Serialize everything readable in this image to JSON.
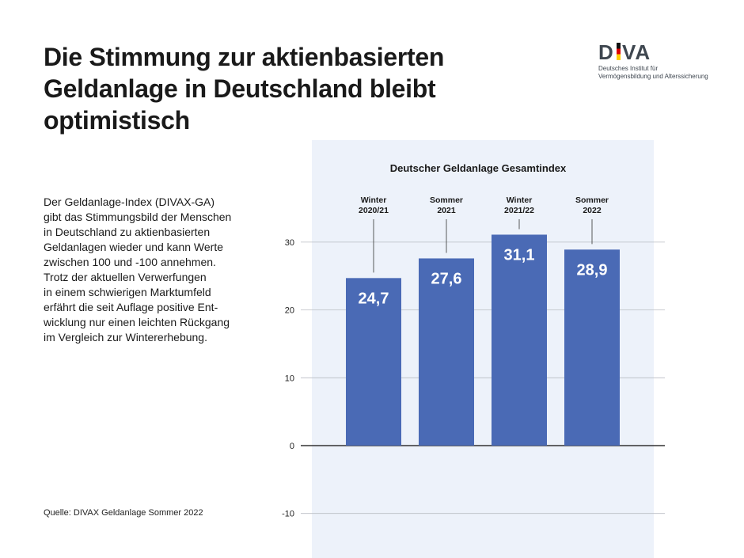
{
  "title": "Die Stimmung zur aktienbasierten Geldanlage in Deutschland bleibt optimistisch",
  "logo": {
    "word": "DIVA",
    "subtitle_line1": "Deutsches Institut für",
    "subtitle_line2": "Vermögensbildung und Alterssicherung"
  },
  "description": "Der Geldanlage-Index (DIVAX-GA)\ngibt das Stimmungsbild der Menschen\nin Deutschland zu aktienbasierten\nGeldanlagen wieder und kann Werte\nzwischen 100 und -100 annehmen.\nTrotz der aktuellen Verwerfungen\nin einem schwierigen Marktumfeld\nerfährt die seit Auflage positive Ent-\nwicklung nur einen leichten Rückgang\nim Vergleich zur Wintererhebung.",
  "source": "Quelle: DIVAX Geldanlage Sommer 2022",
  "colors": {
    "bar": "#4a6ab5",
    "panel": "#edf2fa",
    "grid": "#b8bcc2",
    "zero_line": "#333333"
  },
  "chart_data": {
    "type": "bar",
    "title": "Deutscher Geldanlage Gesamtindex",
    "categories": [
      [
        "Winter",
        "2020/21"
      ],
      [
        "Sommer",
        "2021"
      ],
      [
        "Winter",
        "2021/22"
      ],
      [
        "Sommer",
        "2022"
      ]
    ],
    "values": [
      24.7,
      27.6,
      31.1,
      28.9
    ],
    "value_labels": [
      "24,7",
      "27,6",
      "31,1",
      "28,9"
    ],
    "yticks": [
      30,
      20,
      10,
      0,
      -10
    ],
    "ylim": [
      -16,
      45
    ],
    "grid": true,
    "xlabel": "",
    "ylabel": ""
  }
}
